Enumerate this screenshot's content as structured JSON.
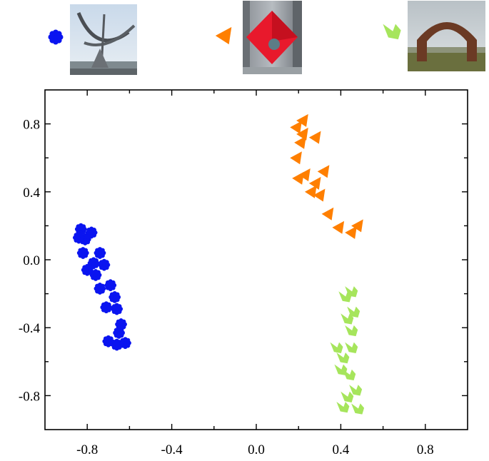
{
  "chart_data": {
    "type": "scatter",
    "title": "",
    "xlabel": "",
    "ylabel": "",
    "xlim": [
      -1.0,
      1.0
    ],
    "ylim": [
      -1.0,
      1.0
    ],
    "xticks": [
      -0.8,
      -0.4,
      0.0,
      0.4,
      0.8
    ],
    "yticks": [
      0.8,
      0.4,
      0.0,
      -0.4,
      -0.8
    ],
    "xtick_labels": [
      "-0.8",
      "-0.4",
      "0.0",
      "0.4",
      "0.8"
    ],
    "ytick_labels": [
      "0.8",
      "0.4",
      "0.0",
      "-0.4",
      "-0.8"
    ],
    "grid": false,
    "legend": "top (marker symbols paired with sculpture photographs)",
    "series": [
      {
        "marker": "blob",
        "color": "#0a14f0",
        "picture": "sundial sculpture photograph",
        "points": [
          [
            -0.83,
            0.18
          ],
          [
            -0.78,
            0.16
          ],
          [
            -0.81,
            0.12
          ],
          [
            -0.84,
            0.13
          ],
          [
            -0.82,
            0.04
          ],
          [
            -0.74,
            0.04
          ],
          [
            -0.77,
            -0.02
          ],
          [
            -0.72,
            -0.03
          ],
          [
            -0.8,
            -0.06
          ],
          [
            -0.76,
            -0.09
          ],
          [
            -0.69,
            -0.15
          ],
          [
            -0.74,
            -0.17
          ],
          [
            -0.67,
            -0.22
          ],
          [
            -0.71,
            -0.28
          ],
          [
            -0.66,
            -0.29
          ],
          [
            -0.64,
            -0.38
          ],
          [
            -0.65,
            -0.43
          ],
          [
            -0.7,
            -0.48
          ],
          [
            -0.66,
            -0.5
          ],
          [
            -0.62,
            -0.49
          ]
        ]
      },
      {
        "marker": "triangle",
        "color": "#ff7f00",
        "picture": "red cube sculpture photograph",
        "points": [
          [
            0.22,
            0.82
          ],
          [
            0.19,
            0.78
          ],
          [
            0.22,
            0.74
          ],
          [
            0.28,
            0.72
          ],
          [
            0.21,
            0.69
          ],
          [
            0.19,
            0.6
          ],
          [
            0.23,
            0.5
          ],
          [
            0.32,
            0.52
          ],
          [
            0.2,
            0.48
          ],
          [
            0.28,
            0.45
          ],
          [
            0.26,
            0.4
          ],
          [
            0.3,
            0.38
          ],
          [
            0.34,
            0.27
          ],
          [
            0.39,
            0.19
          ],
          [
            0.45,
            0.16
          ],
          [
            0.48,
            0.2
          ]
        ]
      },
      {
        "marker": "wing",
        "color": "#a6e55c",
        "picture": "stone arch sculpture photograph",
        "points": [
          [
            0.45,
            -0.19
          ],
          [
            0.42,
            -0.22
          ],
          [
            0.46,
            -0.31
          ],
          [
            0.43,
            -0.35
          ],
          [
            0.45,
            -0.42
          ],
          [
            0.38,
            -0.52
          ],
          [
            0.45,
            -0.52
          ],
          [
            0.41,
            -0.58
          ],
          [
            0.4,
            -0.65
          ],
          [
            0.44,
            -0.68
          ],
          [
            0.47,
            -0.77
          ],
          [
            0.43,
            -0.81
          ],
          [
            0.41,
            -0.87
          ],
          [
            0.48,
            -0.88
          ]
        ]
      }
    ]
  }
}
